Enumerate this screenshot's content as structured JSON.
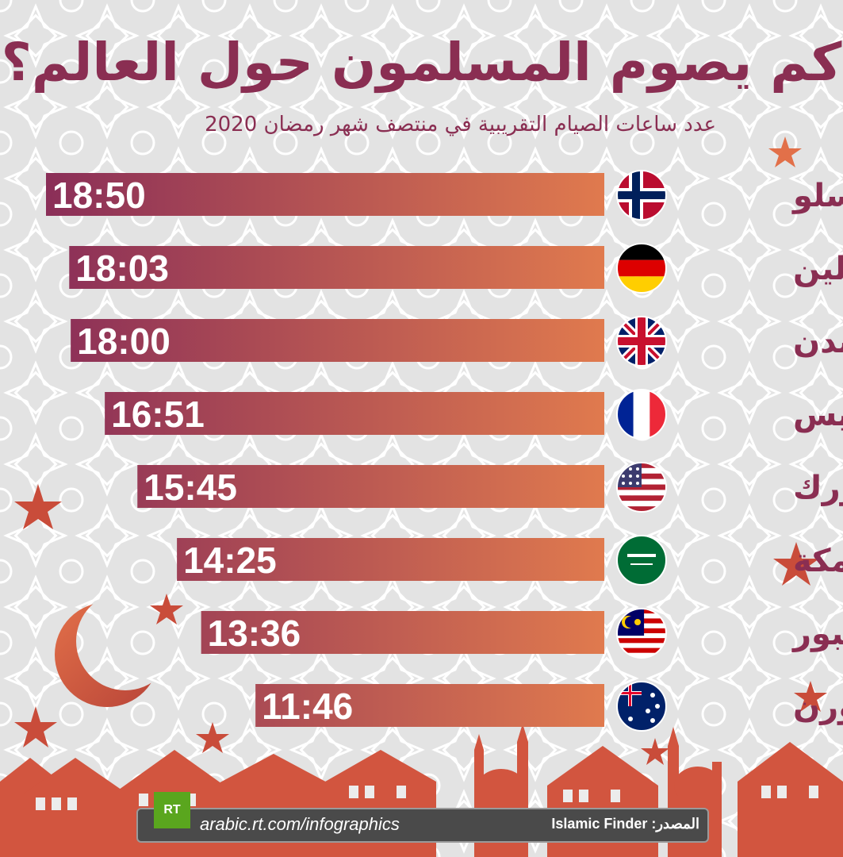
{
  "title": "كم يصوم المسلمون حول العالم؟",
  "subtitle": "عدد ساعات الصيام التقريبية في منتصف شهر رمضان 2020",
  "chart_data": {
    "type": "bar",
    "orientation": "horizontal",
    "title": "كم يصوم المسلمون حول العالم؟",
    "subtitle": "عدد ساعات الصيام التقريبية في منتصف شهر رمضان 2020",
    "unit": "hh:mm",
    "categories": [
      "أوسلو",
      "برلين",
      "لندن",
      "باريس",
      "نيويورك",
      "مكة",
      "كوالالمبور",
      "ملبورن"
    ],
    "labels": [
      "18:50",
      "18:03",
      "18:00",
      "16:51",
      "15:45",
      "14:25",
      "13:36",
      "11:46"
    ],
    "values_minutes": [
      1130,
      1083,
      1080,
      1011,
      945,
      865,
      816,
      706
    ],
    "flags": [
      "norway-flag-icon",
      "germany-flag-icon",
      "uk-flag-icon",
      "france-flag-icon",
      "usa-flag-icon",
      "saudi-flag-icon",
      "malaysia-flag-icon",
      "australia-flag-icon"
    ],
    "bar_color_start": "#8a2e58",
    "bar_color_end": "#e07a4e"
  },
  "footer": {
    "logo": "RT",
    "url": "arabic.rt.com/infographics",
    "source": "المصدر: Islamic Finder"
  },
  "colors": {
    "title": "#8a2e52",
    "accent": "#e27049",
    "background": "#e4e4e4"
  }
}
